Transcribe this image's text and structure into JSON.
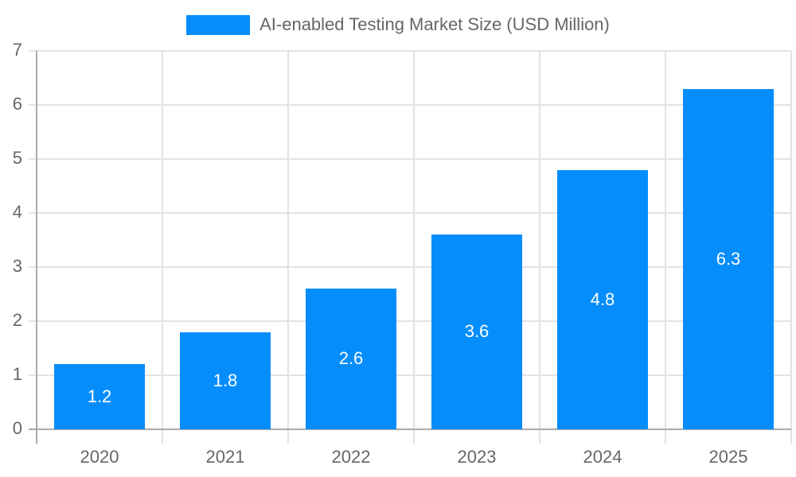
{
  "chart_data": {
    "type": "bar",
    "title": "",
    "legend": [
      {
        "label": "AI-enabled Testing Market Size (USD Million)",
        "color": "#058dfc"
      }
    ],
    "legend_position": "top",
    "categories": [
      "2020",
      "2021",
      "2022",
      "2023",
      "2024",
      "2025"
    ],
    "series": [
      {
        "name": "AI-enabled Testing Market Size (USD Million)",
        "values": [
          1.2,
          1.8,
          2.6,
          3.6,
          4.8,
          6.3
        ],
        "color": "#058dfc"
      }
    ],
    "data_labels": [
      "1.2",
      "1.8",
      "2.6",
      "3.6",
      "4.8",
      "6.3"
    ],
    "xlabel": "",
    "ylabel": "",
    "ylim": [
      0,
      7
    ],
    "yticks": [
      "0",
      "1",
      "2",
      "3",
      "4",
      "5",
      "6",
      "7"
    ],
    "grid": true
  }
}
